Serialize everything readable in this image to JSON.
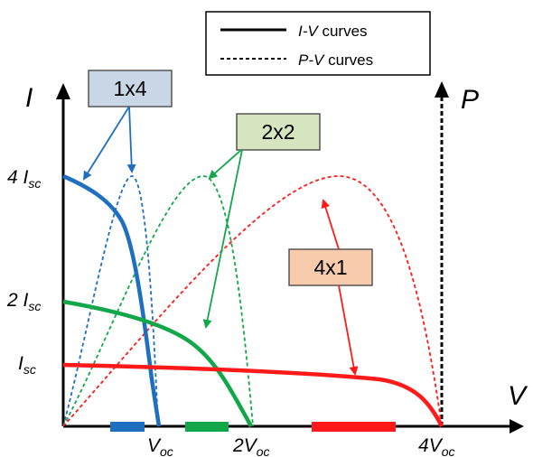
{
  "legend": {
    "iv_italic": "I-V",
    "iv_rest": " curves",
    "pv_italic": "P-V",
    "pv_rest": " curves"
  },
  "axes": {
    "current_label": "I",
    "power_label": "P",
    "voltage_label": "V"
  },
  "y_ticks": [
    {
      "prefix": "4 ",
      "base": "I",
      "sub": "sc"
    },
    {
      "prefix": "2 ",
      "base": "I",
      "sub": "sc"
    },
    {
      "prefix": "",
      "base": "I",
      "sub": "sc"
    }
  ],
  "x_ticks": [
    {
      "prefix": "",
      "base": "V",
      "sub": "oc"
    },
    {
      "prefix": "2",
      "base": "V",
      "sub": "oc"
    },
    {
      "prefix": "4",
      "base": "V",
      "sub": "oc"
    }
  ],
  "configs": [
    {
      "label": "1x4",
      "color": "#1f6fc0",
      "box_fill": "#c9d6e6",
      "bar_color": "#1f6fc0"
    },
    {
      "label": "2x2",
      "color": "#12a84a",
      "box_fill": "#d6e4bf",
      "bar_color": "#12a84a"
    },
    {
      "label": "4x1",
      "color": "#ff1a1a",
      "box_fill": "#f8cbad",
      "bar_color": "#ff1a1a"
    }
  ]
}
